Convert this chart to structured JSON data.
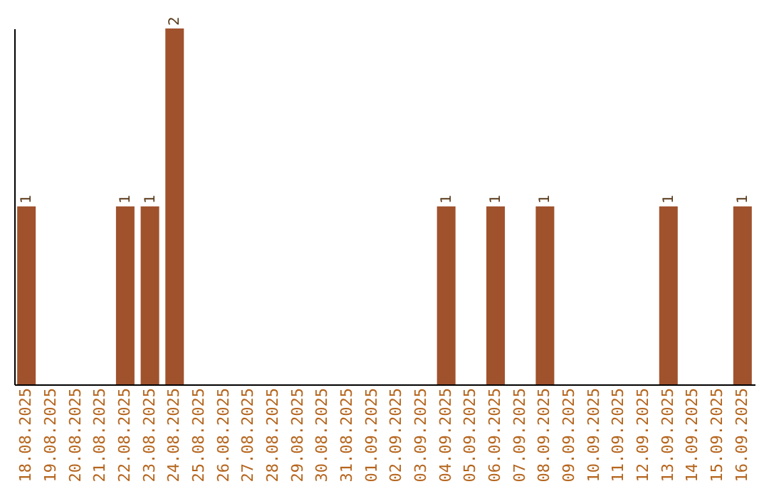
{
  "chart_data": {
    "type": "bar",
    "categories": [
      "18.08.2025",
      "19.08.2025",
      "20.08.2025",
      "21.08.2025",
      "22.08.2025",
      "23.08.2025",
      "24.08.2025",
      "25.08.2025",
      "26.08.2025",
      "27.08.2025",
      "28.08.2025",
      "29.08.2025",
      "30.08.2025",
      "31.08.2025",
      "01.09.2025",
      "02.09.2025",
      "03.09.2025",
      "04.09.2025",
      "05.09.2025",
      "06.09.2025",
      "07.09.2025",
      "08.09.2025",
      "09.09.2025",
      "10.09.2025",
      "11.09.2025",
      "12.09.2025",
      "13.09.2025",
      "14.09.2025",
      "15.09.2025",
      "16.09.2025"
    ],
    "values": [
      1,
      null,
      null,
      null,
      1,
      1,
      2,
      null,
      null,
      null,
      null,
      null,
      null,
      null,
      null,
      null,
      null,
      1,
      null,
      1,
      null,
      1,
      null,
      null,
      null,
      null,
      1,
      null,
      null,
      1
    ],
    "color": "#a0522d",
    "data_labels": true,
    "grid": false,
    "tick_labels": "x"
  }
}
